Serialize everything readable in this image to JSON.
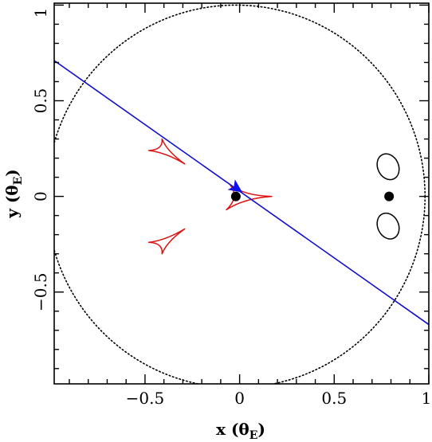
{
  "chart_data": {
    "type": "scatter",
    "xlabel": "x (θ",
    "xlabel_sub": "E",
    "ylabel": "y (θ",
    "ylabel_sub": "E",
    "xlim": [
      -0.98,
      1.0
    ],
    "ylim": [
      -0.98,
      1.01
    ],
    "grid": false,
    "x_ticks": [
      {
        "value": -0.5,
        "label": "−0.5"
      },
      {
        "value": 0,
        "label": "0"
      },
      {
        "value": 0.5,
        "label": "0.5"
      },
      {
        "value": 1,
        "label": "1"
      }
    ],
    "y_ticks": [
      {
        "value": -0.5,
        "label": "−0.5"
      },
      {
        "value": 0,
        "label": "0"
      },
      {
        "value": 0.5,
        "label": "0.5"
      },
      {
        "value": 1,
        "label": "1"
      }
    ],
    "colors": {
      "caustic": "#dd1111",
      "trajectory": "#1010cc",
      "critical_curve": "#000000",
      "lens": "#000000",
      "source": "#1010ee"
    },
    "lens_masses": [
      {
        "x": -0.02,
        "y": 0.0
      },
      {
        "x": 0.79,
        "y": 0.0
      }
    ],
    "trajectory": {
      "x": [
        -0.98,
        1.0
      ],
      "y": [
        0.71,
        -0.67
      ]
    },
    "source": {
      "x": -0.02,
      "y": 0.045
    },
    "caustics": [
      {
        "name": "central",
        "points": [
          [
            -0.07,
            -0.07
          ],
          [
            0.17,
            0.0
          ],
          [
            -0.05,
            0.06
          ]
        ]
      },
      {
        "name": "planetary-upper",
        "points": [
          [
            -0.48,
            0.24
          ],
          [
            -0.41,
            0.3
          ],
          [
            -0.29,
            0.17
          ]
        ]
      },
      {
        "name": "planetary-lower",
        "points": [
          [
            -0.48,
            -0.24
          ],
          [
            -0.41,
            -0.3
          ],
          [
            -0.29,
            -0.17
          ]
        ]
      }
    ],
    "critical_curves": [
      {
        "name": "outer",
        "center": [
          -0.02,
          0.0
        ],
        "radius": 1.0
      },
      {
        "name": "small-upper",
        "center": [
          0.785,
          0.155
        ],
        "rx": 0.055,
        "ry": 0.07
      },
      {
        "name": "small-lower",
        "center": [
          0.785,
          -0.155
        ],
        "rx": 0.055,
        "ry": 0.07
      }
    ]
  }
}
